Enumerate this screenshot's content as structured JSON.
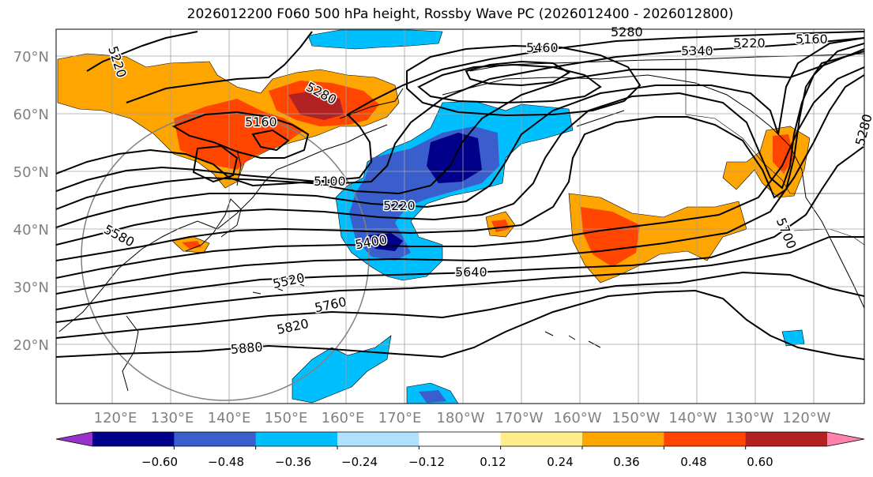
{
  "title": "2026012200 F060 500 hPa height, Rossby Wave PC (2026012400 - 2026012800)",
  "map": {
    "lat_labels": [
      "70°N",
      "60°N",
      "50°N",
      "40°N",
      "30°N",
      "20°N"
    ],
    "lon_labels": [
      "120°E",
      "130°E",
      "140°E",
      "150°E",
      "160°E",
      "170°E",
      "180°W",
      "170°W",
      "160°W",
      "150°W",
      "140°W",
      "130°W",
      "120°W"
    ],
    "contour_labels": [
      "5220",
      "5280",
      "5160",
      "5100",
      "5220",
      "5400",
      "5520",
      "5580",
      "5640",
      "5760",
      "5820",
      "5880",
      "5460",
      "5340",
      "5220",
      "5160",
      "5280",
      "5280",
      "5700"
    ]
  },
  "colorbar": {
    "tick_labels": [
      "−0.60",
      "−0.48",
      "−0.36",
      "−0.24",
      "−0.12",
      "0.12",
      "0.24",
      "0.36",
      "0.48",
      "0.60"
    ],
    "colors": [
      "#9932cc",
      "#00008b",
      "#3a5fcd",
      "#00bfff",
      "#b0e2ff",
      "#ffffff",
      "#ffec8b",
      "#ffa500",
      "#ff4500",
      "#b22222",
      "#ff82ab"
    ]
  }
}
